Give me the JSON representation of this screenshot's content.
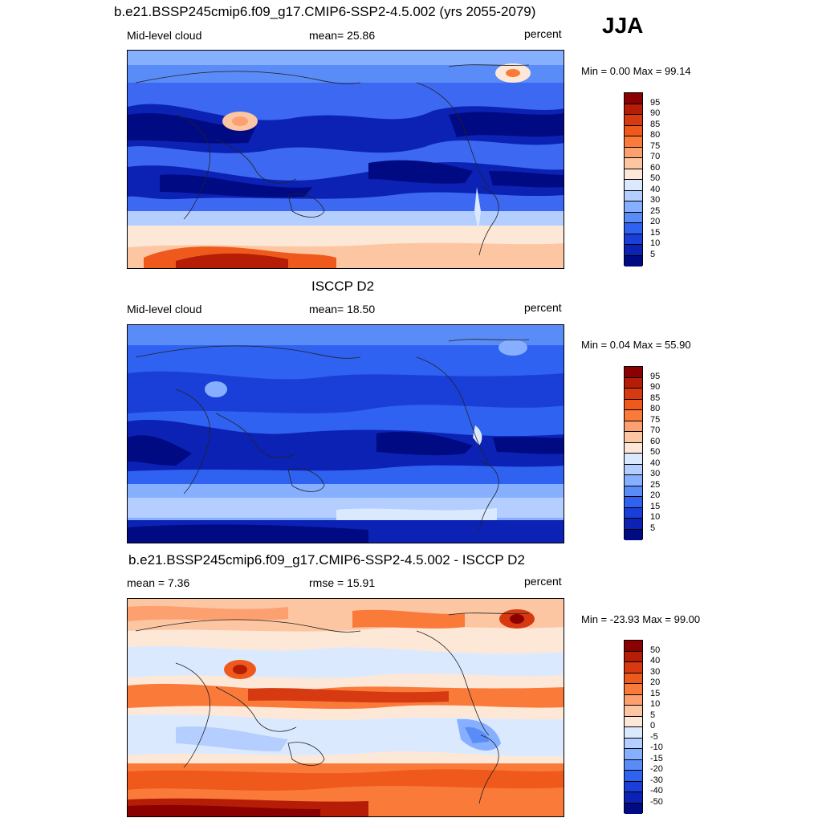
{
  "header": {
    "season": "JJA"
  },
  "panels": [
    {
      "title": "b.e21.BSSP245cmip6.f09_g17.CMIP6-SSP2-4.5.002 (yrs 2055-2079)",
      "left_label": "Mid-level cloud",
      "center_label": "mean=  25.86",
      "right_label": "percent",
      "minmax": "Min =    0.00 Max =  99.14",
      "colorbar": {
        "labels": [
          "95",
          "90",
          "85",
          "80",
          "75",
          "70",
          "60",
          "50",
          "40",
          "30",
          "25",
          "20",
          "15",
          "10",
          "5"
        ],
        "colors": [
          "#8b0000",
          "#b51d06",
          "#d73a10",
          "#ef5a1c",
          "#fa7a3a",
          "#fca070",
          "#fdc6a2",
          "#fde8d8",
          "#dbe9ff",
          "#b3ceff",
          "#86b0ff",
          "#5a8cf7",
          "#2f62f0",
          "#1a3fd8",
          "#0b22b4",
          "#000a82"
        ]
      }
    },
    {
      "title": "ISCCP D2",
      "left_label": "Mid-level cloud",
      "center_label": "mean=  18.50",
      "right_label": "percent",
      "minmax": "Min =   0.04 Max =  55.90",
      "colorbar": {
        "labels": [
          "95",
          "90",
          "85",
          "80",
          "75",
          "70",
          "60",
          "50",
          "40",
          "30",
          "25",
          "20",
          "15",
          "10",
          "5"
        ],
        "colors": [
          "#8b0000",
          "#b51d06",
          "#d73a10",
          "#ef5a1c",
          "#fa7a3a",
          "#fca070",
          "#fdc6a2",
          "#fde8d8",
          "#dbe9ff",
          "#b3ceff",
          "#86b0ff",
          "#5a8cf7",
          "#2f62f0",
          "#1a3fd8",
          "#0b22b4",
          "#000a82"
        ]
      }
    },
    {
      "title": "b.e21.BSSP245cmip6.f09_g17.CMIP6-SSP2-4.5.002 - ISCCP D2",
      "left_label": "mean =   7.36",
      "center_label": "rmse =  15.91",
      "right_label": "percent",
      "minmax": "Min = -23.93 Max =  99.00",
      "colorbar": {
        "labels": [
          "50",
          "40",
          "30",
          "20",
          "15",
          "10",
          "5",
          "0",
          "-5",
          "-10",
          "-15",
          "-20",
          "-30",
          "-40",
          "-50"
        ],
        "colors": [
          "#8b0000",
          "#b51d06",
          "#d73a10",
          "#ef5a1c",
          "#fa7a3a",
          "#fca070",
          "#fdc6a2",
          "#fde8d8",
          "#dbe9ff",
          "#b3ceff",
          "#86b0ff",
          "#5a8cf7",
          "#2f62f0",
          "#1a3fd8",
          "#0b22b4",
          "#000a82"
        ]
      }
    }
  ]
}
